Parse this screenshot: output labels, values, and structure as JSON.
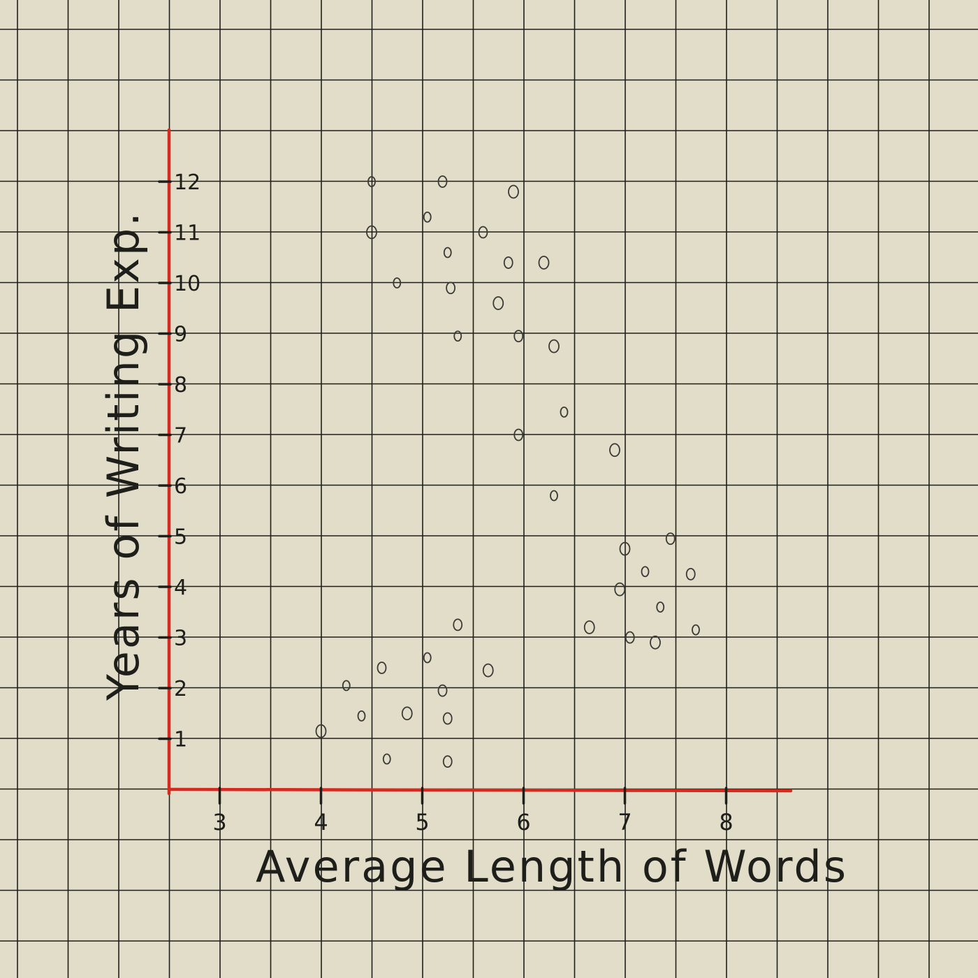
{
  "chart_data": {
    "type": "scatter",
    "title": "",
    "xlabel": "Average Length of Words",
    "ylabel": "Years of Writing Exp.",
    "x_ticks": [
      3,
      4,
      5,
      6,
      7,
      8
    ],
    "y_ticks": [
      1,
      2,
      3,
      4,
      5,
      6,
      7,
      8,
      9,
      10,
      11,
      12
    ],
    "xlim": [
      2.5,
      8.6
    ],
    "ylim": [
      0,
      13
    ],
    "grid": true,
    "colors": {
      "axis": "#d42a20",
      "grid": "#1f1f1b",
      "ink": "#1e1e1a",
      "marker": "#3a3a36",
      "background": "#e2ddc8"
    },
    "points": [
      {
        "x": 4.5,
        "y": 12.0
      },
      {
        "x": 5.2,
        "y": 12.0
      },
      {
        "x": 5.9,
        "y": 11.8
      },
      {
        "x": 5.05,
        "y": 11.3
      },
      {
        "x": 5.6,
        "y": 11.0
      },
      {
        "x": 4.5,
        "y": 11.0
      },
      {
        "x": 5.25,
        "y": 10.6
      },
      {
        "x": 5.85,
        "y": 10.4
      },
      {
        "x": 6.2,
        "y": 10.4
      },
      {
        "x": 4.75,
        "y": 10.0
      },
      {
        "x": 5.28,
        "y": 9.9
      },
      {
        "x": 5.75,
        "y": 9.6
      },
      {
        "x": 5.35,
        "y": 8.95
      },
      {
        "x": 5.95,
        "y": 8.95
      },
      {
        "x": 6.3,
        "y": 8.75
      },
      {
        "x": 6.4,
        "y": 7.45
      },
      {
        "x": 5.95,
        "y": 7.0
      },
      {
        "x": 6.9,
        "y": 6.7
      },
      {
        "x": 6.3,
        "y": 5.8
      },
      {
        "x": 7.45,
        "y": 4.95
      },
      {
        "x": 7.0,
        "y": 4.75
      },
      {
        "x": 7.2,
        "y": 4.3
      },
      {
        "x": 7.65,
        "y": 4.25
      },
      {
        "x": 6.95,
        "y": 3.95
      },
      {
        "x": 7.35,
        "y": 3.6
      },
      {
        "x": 5.35,
        "y": 3.25
      },
      {
        "x": 6.65,
        "y": 3.2
      },
      {
        "x": 7.7,
        "y": 3.15
      },
      {
        "x": 7.05,
        "y": 3.0
      },
      {
        "x": 7.3,
        "y": 2.9
      },
      {
        "x": 5.05,
        "y": 2.6
      },
      {
        "x": 4.6,
        "y": 2.4
      },
      {
        "x": 5.65,
        "y": 2.35
      },
      {
        "x": 4.25,
        "y": 2.05
      },
      {
        "x": 5.2,
        "y": 1.95
      },
      {
        "x": 4.85,
        "y": 1.5
      },
      {
        "x": 4.4,
        "y": 1.45
      },
      {
        "x": 5.25,
        "y": 1.4
      },
      {
        "x": 4.0,
        "y": 1.15
      },
      {
        "x": 4.65,
        "y": 0.6
      },
      {
        "x": 5.25,
        "y": 0.55
      }
    ]
  }
}
